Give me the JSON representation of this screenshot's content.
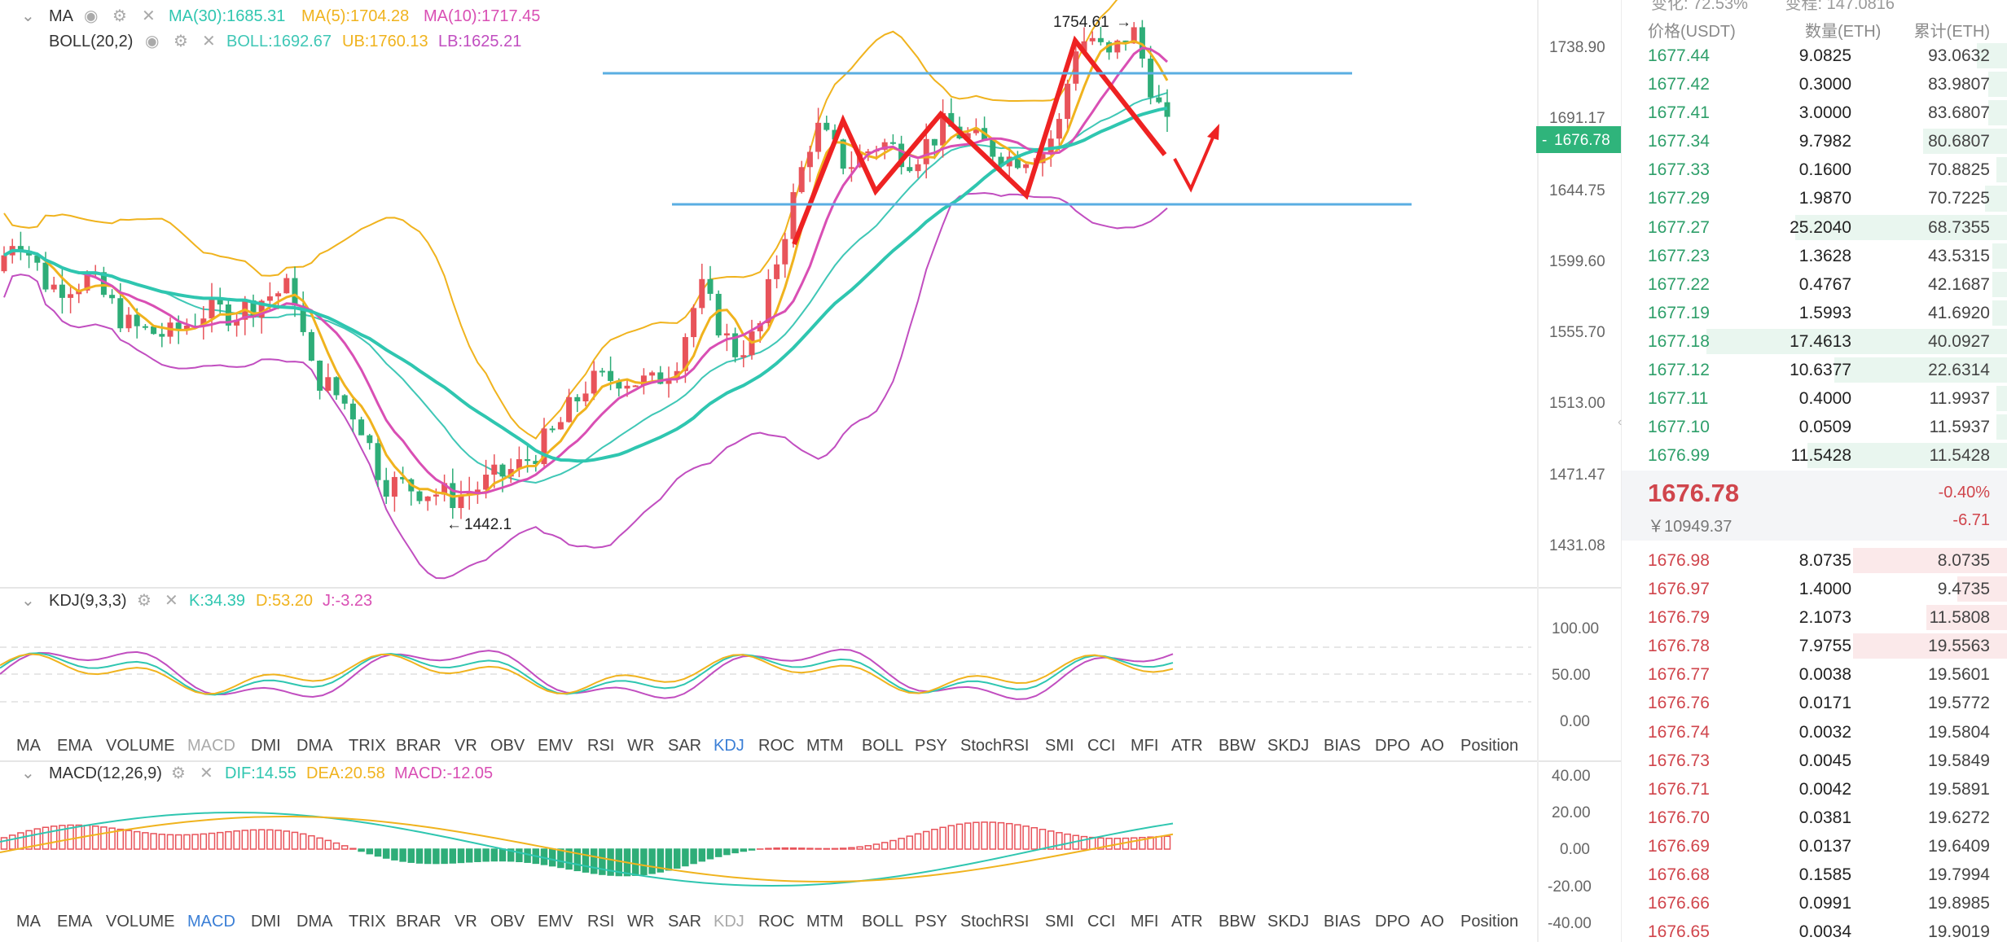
{
  "main_indicators": {
    "ma_label": "MA",
    "ma30": "MA(30):1685.31",
    "ma5": "MA(5):1704.28",
    "ma10": "MA(10):1717.45",
    "boll_label": "BOLL(20,2)",
    "boll": "BOLL:1692.67",
    "ub": "UB:1760.13",
    "lb": "LB:1625.21"
  },
  "annotations": {
    "high": "1754.61",
    "low": "1442.1"
  },
  "price_axis": {
    "ticks": [
      "1738.90",
      "1691.17",
      "1644.75",
      "1599.60",
      "1555.70",
      "1513.00",
      "1471.47",
      "1431.08"
    ],
    "current": "1676.78"
  },
  "kdj": {
    "label": "KDJ(9,3,3)",
    "k": "K:34.39",
    "d": "D:53.20",
    "j": "J:-3.23",
    "ticks": [
      "100.00",
      "50.00",
      "0.00"
    ]
  },
  "macd": {
    "label": "MACD(12,26,9)",
    "dif": "DIF:14.55",
    "dea": "DEA:20.58",
    "macd": "MACD:-12.05",
    "ticks": [
      "40.00",
      "20.00",
      "0.00",
      "-20.00",
      "-40.00"
    ]
  },
  "indicator_tabs": [
    "MA",
    "EMA",
    "VOLUME",
    "MACD",
    "DMI",
    "DMA",
    "TRIX",
    "BRAR",
    "VR",
    "OBV",
    "EMV",
    "RSI",
    "WR",
    "SAR",
    "KDJ",
    "ROC",
    "MTM",
    "BOLL",
    "PSY",
    "StochRSI",
    "SMI",
    "CCI",
    "MFI",
    "ATR",
    "BBW",
    "SKDJ",
    "BIAS",
    "DPO",
    "AO",
    "Position"
  ],
  "tabs_row1_active": "KDJ",
  "tabs_row2_active": "MACD",
  "colors": {
    "up": "#e8535a",
    "down": "#2ead78",
    "ma5": "#f0b31e",
    "ma10": "#d94fb4",
    "ma30": "#2fc6b0",
    "boll_mid": "#3fc7b6",
    "ub": "#f0b31e",
    "lb": "#c14ec0",
    "arrow": "#ee2222",
    "hline": "#5aaee2",
    "active_tab": "#3b7fd6"
  },
  "order_book": {
    "top_cut": [
      "变化: 72.53%",
      "变程: 147.0816"
    ],
    "headers": [
      "价格(USDT)",
      "数量(ETH)",
      "累计(ETH)"
    ],
    "bids": [
      {
        "price": "1677.44",
        "qty": "9.0825",
        "cum": "93.0632",
        "depth": 0.08
      },
      {
        "price": "1677.42",
        "qty": "0.3000",
        "cum": "83.9807",
        "depth": 0.05
      },
      {
        "price": "1677.41",
        "qty": "3.0000",
        "cum": "83.6807",
        "depth": 0.05
      },
      {
        "price": "1677.34",
        "qty": "9.7982",
        "cum": "80.6807",
        "depth": 0.22
      },
      {
        "price": "1677.33",
        "qty": "0.1600",
        "cum": "70.8825",
        "depth": 0.03
      },
      {
        "price": "1677.29",
        "qty": "1.9870",
        "cum": "70.7225",
        "depth": 0.06
      },
      {
        "price": "1677.27",
        "qty": "25.2040",
        "cum": "68.7355",
        "depth": 0.55
      },
      {
        "price": "1677.23",
        "qty": "1.3628",
        "cum": "43.5315",
        "depth": 0.04
      },
      {
        "price": "1677.22",
        "qty": "0.4767",
        "cum": "42.1687",
        "depth": 0.04
      },
      {
        "price": "1677.19",
        "qty": "1.5993",
        "cum": "41.6920",
        "depth": 0.04
      },
      {
        "price": "1677.18",
        "qty": "17.4613",
        "cum": "40.0927",
        "depth": 0.78
      },
      {
        "price": "1677.12",
        "qty": "10.6377",
        "cum": "22.6314",
        "depth": 0.45
      },
      {
        "price": "1677.11",
        "qty": "0.4000",
        "cum": "11.9937",
        "depth": 0.03
      },
      {
        "price": "1677.10",
        "qty": "0.0509",
        "cum": "11.5937",
        "depth": 0.03
      },
      {
        "price": "1676.99",
        "qty": "11.5428",
        "cum": "11.5428",
        "depth": 0.52
      }
    ],
    "mid": {
      "price": "1676.78",
      "cny": "￥10949.37",
      "pct": "-0.40%",
      "chg": "-6.71"
    },
    "asks": [
      {
        "price": "1676.98",
        "qty": "8.0735",
        "cum": "8.0735",
        "depth": 0.4
      },
      {
        "price": "1676.97",
        "qty": "1.4000",
        "cum": "9.4735",
        "depth": 0.13
      },
      {
        "price": "1676.79",
        "qty": "2.1073",
        "cum": "11.5808",
        "depth": 0.21
      },
      {
        "price": "1676.78",
        "qty": "7.9755",
        "cum": "19.5563",
        "depth": 0.4
      },
      {
        "price": "1676.77",
        "qty": "0.0038",
        "cum": "19.5601",
        "depth": 0.0
      },
      {
        "price": "1676.76",
        "qty": "0.0171",
        "cum": "19.5772",
        "depth": 0.0
      },
      {
        "price": "1676.74",
        "qty": "0.0032",
        "cum": "19.5804",
        "depth": 0.0
      },
      {
        "price": "1676.73",
        "qty": "0.0045",
        "cum": "19.5849",
        "depth": 0.0
      },
      {
        "price": "1676.71",
        "qty": "0.0042",
        "cum": "19.5891",
        "depth": 0.0
      },
      {
        "price": "1676.70",
        "qty": "0.0381",
        "cum": "19.6272",
        "depth": 0.0
      },
      {
        "price": "1676.69",
        "qty": "0.0137",
        "cum": "19.6409",
        "depth": 0.0
      },
      {
        "price": "1676.68",
        "qty": "0.1585",
        "cum": "19.7994",
        "depth": 0.0
      },
      {
        "price": "1676.66",
        "qty": "0.0991",
        "cum": "19.8985",
        "depth": 0.0
      },
      {
        "price": "1676.65",
        "qty": "0.0034",
        "cum": "19.9019",
        "depth": 0.0
      }
    ]
  }
}
